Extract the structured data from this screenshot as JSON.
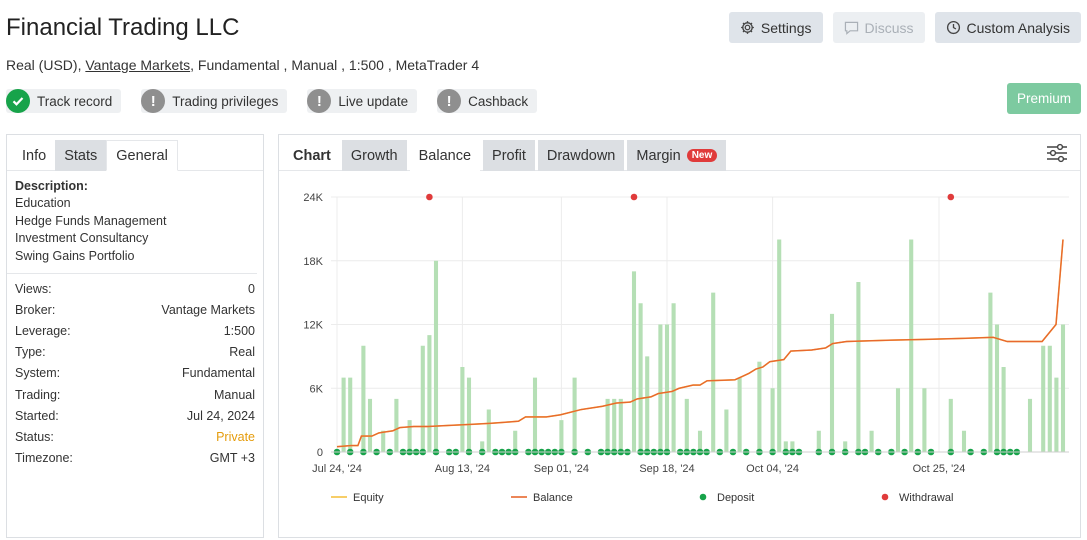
{
  "header": {
    "title": "Financial Trading LLC",
    "account_type": "Real (USD),",
    "broker": "Vantage Markets",
    "details": ", Fundamental , Manual , 1:500 , MetaTrader 4"
  },
  "toolbar": {
    "settings_label": "Settings",
    "discuss_label": "Discuss",
    "custom_analysis_label": "Custom Analysis",
    "premium_label": "Premium"
  },
  "badges": [
    {
      "label": "Track record",
      "status": "ok"
    },
    {
      "label": "Trading privileges",
      "status": "warn"
    },
    {
      "label": "Live update",
      "status": "warn"
    },
    {
      "label": "Cashback",
      "status": "warn"
    }
  ],
  "info_panel": {
    "tabs": [
      "Info",
      "Stats",
      "General"
    ],
    "active_tab": "General",
    "description_label": "Description:",
    "description_lines": [
      "Education",
      "Hedge Funds Management",
      "Investment Consultancy",
      "Swing Gains Portfolio"
    ],
    "rows": [
      {
        "key": "Views:",
        "value": "0"
      },
      {
        "key": "Broker:",
        "value": "Vantage Markets"
      },
      {
        "key": "Leverage:",
        "value": "1:500"
      },
      {
        "key": "Type:",
        "value": "Real"
      },
      {
        "key": "System:",
        "value": "Fundamental"
      },
      {
        "key": "Trading:",
        "value": "Manual"
      },
      {
        "key": "Started:",
        "value": "Jul 24, 2024"
      },
      {
        "key": "Status:",
        "value": "Private"
      },
      {
        "key": "Timezone:",
        "value": "GMT +3"
      }
    ],
    "status_color": "#e59c0c"
  },
  "chart_panel": {
    "label": "Chart",
    "tabs": [
      "Growth",
      "Balance",
      "Profit",
      "Drawdown",
      "Margin"
    ],
    "active_tab": "Balance",
    "new_badge": "New"
  },
  "chart_data": {
    "type": "line",
    "ylim": [
      0,
      24000
    ],
    "y_ticks": [
      0,
      6000,
      12000,
      18000,
      24000
    ],
    "y_tick_labels": [
      "0",
      "6K",
      "12K",
      "18K",
      "24K"
    ],
    "x_tick_labels": [
      "Jul 24, '24",
      "Aug 13, '24",
      "Sep 01, '24",
      "Sep 18, '24",
      "Oct 04, '24",
      "Oct 25, '24"
    ],
    "grid": true,
    "legend_placement": "bottom",
    "legend": [
      {
        "name": "Equity",
        "color": "#f5c242",
        "kind": "line"
      },
      {
        "name": "Balance",
        "color": "#e8682e",
        "kind": "line"
      },
      {
        "name": "Deposit",
        "color": "#17a34a",
        "kind": "dot"
      },
      {
        "name": "Withdrawal",
        "color": "#e03b3b",
        "kind": "dot"
      }
    ],
    "bar_color": "#b5dfb5",
    "bars": [
      0,
      7000,
      7000,
      0,
      10000,
      5000,
      0,
      2000,
      0,
      5000,
      0,
      3000,
      0,
      10000,
      11000,
      18000,
      0,
      0,
      0,
      8000,
      7000,
      0,
      1000,
      4000,
      0,
      0,
      0,
      2000,
      0,
      0,
      7000,
      0,
      0,
      0,
      3000,
      0,
      7000,
      0,
      0,
      0,
      0,
      5000,
      5000,
      5000,
      0,
      17000,
      14000,
      9000,
      0,
      12000,
      12000,
      14000,
      0,
      5000,
      0,
      2000,
      0,
      15000,
      0,
      4000,
      0,
      7000,
      0,
      0,
      8500,
      0,
      6000,
      20000,
      1000,
      1000,
      0,
      0,
      0,
      2000,
      0,
      13000,
      0,
      1000,
      0,
      16000,
      0,
      2000,
      0,
      0,
      0,
      6000,
      0,
      20000,
      0,
      6000,
      0,
      0,
      0,
      5000,
      0,
      2000,
      0,
      0,
      0,
      15000,
      12000,
      8000,
      0,
      0,
      0,
      5000,
      0,
      10000,
      10000,
      7000,
      12000
    ],
    "balance": [
      [
        0,
        500
      ],
      [
        2,
        600
      ],
      [
        3,
        600
      ],
      [
        3.5,
        1500
      ],
      [
        5,
        1500
      ],
      [
        6,
        1800
      ],
      [
        8,
        2000
      ],
      [
        9,
        2300
      ],
      [
        11,
        2400
      ],
      [
        13,
        2400
      ],
      [
        16,
        2500
      ],
      [
        19,
        2600
      ],
      [
        22,
        2700
      ],
      [
        24,
        2800
      ],
      [
        26,
        2900
      ],
      [
        27,
        3300
      ],
      [
        30,
        3300
      ],
      [
        32,
        3500
      ],
      [
        35,
        4000
      ],
      [
        38,
        4300
      ],
      [
        40,
        4600
      ],
      [
        42,
        4700
      ],
      [
        43,
        5000
      ],
      [
        45,
        5200
      ],
      [
        46,
        5500
      ],
      [
        48,
        5700
      ],
      [
        49,
        6000
      ],
      [
        51,
        6300
      ],
      [
        52,
        6300
      ],
      [
        53,
        6700
      ],
      [
        57,
        6800
      ],
      [
        58,
        7100
      ],
      [
        59,
        7400
      ],
      [
        60,
        7800
      ],
      [
        61,
        8000
      ],
      [
        62,
        8500
      ],
      [
        64,
        8700
      ],
      [
        65,
        9500
      ],
      [
        68,
        9600
      ],
      [
        70,
        9800
      ],
      [
        71,
        10200
      ],
      [
        73,
        10400
      ],
      [
        78,
        10500
      ],
      [
        84,
        10600
      ],
      [
        90,
        10700
      ],
      [
        94,
        10800
      ],
      [
        96,
        10400
      ],
      [
        101,
        10400
      ],
      [
        103,
        12000
      ],
      [
        104,
        20000
      ]
    ],
    "x_max": 104,
    "deposits": [
      0,
      2,
      4,
      6,
      8,
      10,
      11,
      12,
      13,
      15,
      17,
      18,
      20,
      22,
      24,
      25,
      26,
      27,
      29,
      30,
      31,
      32,
      33,
      34,
      36,
      38,
      40,
      41,
      42,
      43,
      44,
      46,
      47,
      48,
      49,
      50,
      52,
      53,
      54,
      55,
      56,
      58,
      60,
      62,
      64,
      66,
      68,
      69,
      70,
      73,
      75,
      77,
      79,
      80,
      82,
      84,
      86,
      88,
      90,
      93,
      96,
      98,
      100,
      101,
      102,
      103
    ],
    "withdrawals": [
      14,
      45,
      93
    ]
  }
}
